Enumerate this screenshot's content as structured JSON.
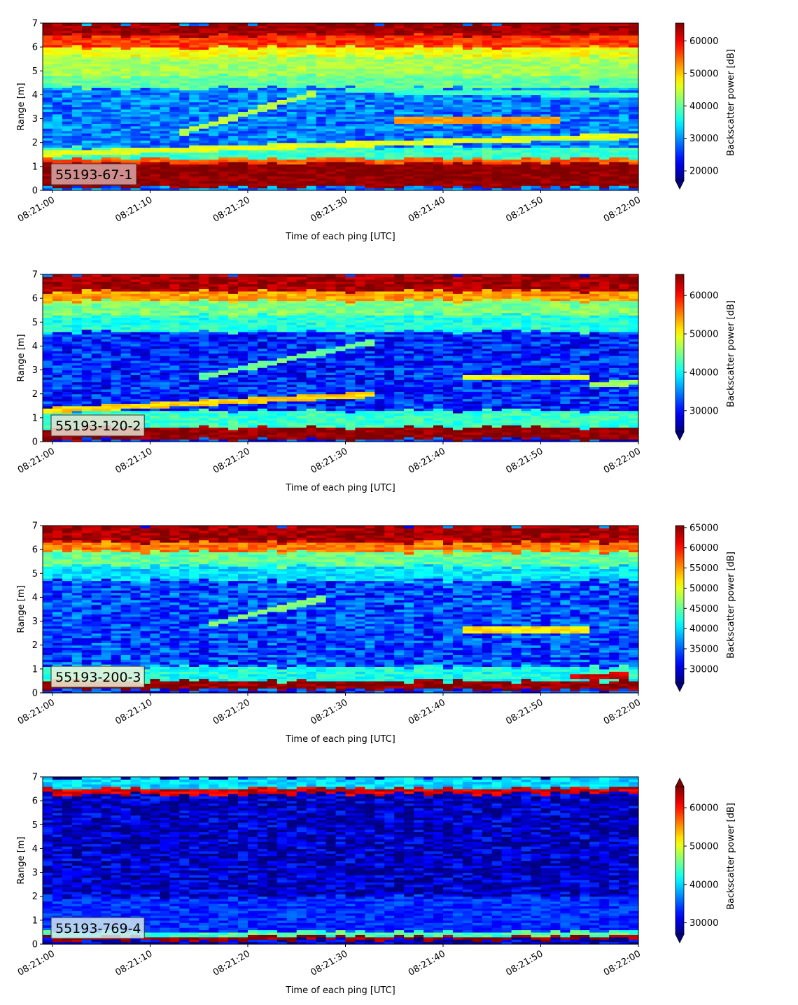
{
  "chart_data": [
    {
      "type": "heatmap",
      "label": "55193-67-1",
      "label_box_color": "#d9a6a6",
      "xlabel": "Time of each ping [UTC]",
      "ylabel": "Range [m]",
      "x_ticks": [
        "08:21:00",
        "08:21:10",
        "08:21:20",
        "08:21:30",
        "08:21:40",
        "08:21:50",
        "08:22:00"
      ],
      "x_range": [
        "08:20:59",
        "08:22:00"
      ],
      "y_ticks": [
        0,
        1,
        2,
        3,
        4,
        5,
        6,
        7
      ],
      "ylim": [
        0,
        7
      ],
      "colorbar_label": "Backscatter power [dB]",
      "colorbar_ticks": [
        20000,
        30000,
        40000,
        50000,
        60000
      ],
      "colorbar_range": [
        17000,
        65500
      ],
      "colorbar_extend": "min",
      "colormap": "jet",
      "features": {
        "background": 29000,
        "bands": [
          {
            "range_m": [
              0.15,
              1.15
            ],
            "value": 65000
          },
          {
            "range_m": [
              1.15,
              1.35
            ],
            "value": 55000
          },
          {
            "range_m": [
              1.35,
              1.8
            ],
            "value": 38000
          },
          {
            "range_m": [
              4.3,
              4.8
            ],
            "value": 40000
          },
          {
            "range_m": [
              4.8,
              5.6
            ],
            "value": 43000
          },
          {
            "range_m": [
              5.6,
              6.0
            ],
            "value": 47000
          },
          {
            "range_m": [
              6.0,
              6.5
            ],
            "value": 57000
          },
          {
            "range_m": [
              6.5,
              7.0
            ],
            "value": 64000
          }
        ],
        "tracks": [
          {
            "start": [
              "08:20:59",
              1.55
            ],
            "end": [
              "08:22:00",
              2.3
            ],
            "value": 46000
          },
          {
            "start": [
              "08:21:13",
              2.4
            ],
            "end": [
              "08:21:27",
              4.1
            ],
            "value": 44000
          },
          {
            "start": [
              "08:21:35",
              2.95
            ],
            "end": [
              "08:21:52",
              2.95
            ],
            "value": 52000
          },
          {
            "start": [
              "08:21:30",
              4.2
            ],
            "end": [
              "08:22:00",
              4.0
            ],
            "value": 38000
          }
        ]
      }
    },
    {
      "type": "heatmap",
      "label": "55193-120-2",
      "label_box_color": "#eadfd0",
      "xlabel": "Time of each ping [UTC]",
      "ylabel": "Range [m]",
      "x_ticks": [
        "08:21:00",
        "08:21:10",
        "08:21:20",
        "08:21:30",
        "08:21:40",
        "08:21:50",
        "08:22:00"
      ],
      "x_range": [
        "08:20:59",
        "08:22:00"
      ],
      "y_ticks": [
        0,
        1,
        2,
        3,
        4,
        5,
        6,
        7
      ],
      "ylim": [
        0,
        7
      ],
      "colorbar_label": "Backscatter power [dB]",
      "colorbar_ticks": [
        30000,
        40000,
        50000,
        60000
      ],
      "colorbar_range": [
        24500,
        65500
      ],
      "colorbar_extend": "min",
      "colormap": "jet",
      "features": {
        "background": 31000,
        "bands": [
          {
            "range_m": [
              0.1,
              0.6
            ],
            "value": 65000
          },
          {
            "range_m": [
              0.6,
              1.3
            ],
            "value": 42000
          },
          {
            "range_m": [
              4.6,
              5.3
            ],
            "value": 41000
          },
          {
            "range_m": [
              5.3,
              5.9
            ],
            "value": 45000
          },
          {
            "range_m": [
              5.9,
              6.3
            ],
            "value": 54000
          },
          {
            "range_m": [
              6.3,
              7.0
            ],
            "value": 64000
          }
        ],
        "tracks": [
          {
            "start": [
              "08:20:59",
              1.3
            ],
            "end": [
              "08:21:33",
              2.0
            ],
            "value": 52000
          },
          {
            "start": [
              "08:21:15",
              2.7
            ],
            "end": [
              "08:21:33",
              4.2
            ],
            "value": 44000
          },
          {
            "start": [
              "08:21:42",
              2.7
            ],
            "end": [
              "08:21:55",
              2.7
            ],
            "value": 50000
          },
          {
            "start": [
              "08:21:55",
              2.4
            ],
            "end": [
              "08:22:00",
              2.5
            ],
            "value": 46000
          }
        ]
      }
    },
    {
      "type": "heatmap",
      "label": "55193-200-3",
      "label_box_color": "#f2f2d8",
      "xlabel": "Time of each ping [UTC]",
      "ylabel": "Range [m]",
      "x_ticks": [
        "08:21:00",
        "08:21:10",
        "08:21:20",
        "08:21:30",
        "08:21:40",
        "08:21:50",
        "08:22:00"
      ],
      "x_range": [
        "08:20:59",
        "08:22:00"
      ],
      "y_ticks": [
        0,
        1,
        2,
        3,
        4,
        5,
        6,
        7
      ],
      "ylim": [
        0,
        7
      ],
      "colorbar_label": "Backscatter power [dB]",
      "colorbar_ticks": [
        30000,
        35000,
        40000,
        45000,
        50000,
        55000,
        60000,
        65000
      ],
      "colorbar_range": [
        26500,
        65500
      ],
      "colorbar_extend": "min",
      "colormap": "jet",
      "features": {
        "background": 34000,
        "bands": [
          {
            "range_m": [
              0.15,
              0.5
            ],
            "value": 65000
          },
          {
            "range_m": [
              0.5,
              1.1
            ],
            "value": 42000
          },
          {
            "range_m": [
              4.7,
              5.3
            ],
            "value": 40000
          },
          {
            "range_m": [
              5.3,
              5.9
            ],
            "value": 45000
          },
          {
            "range_m": [
              5.9,
              6.3
            ],
            "value": 56000
          },
          {
            "range_m": [
              6.3,
              7.0
            ],
            "value": 64000
          }
        ],
        "tracks": [
          {
            "start": [
              "08:21:16",
              2.85
            ],
            "end": [
              "08:21:28",
              4.0
            ],
            "value": 46000
          },
          {
            "start": [
              "08:21:42",
              2.65
            ],
            "end": [
              "08:21:55",
              2.65
            ],
            "value": 52000
          },
          {
            "start": [
              "08:21:53",
              0.7
            ],
            "end": [
              "08:21:59",
              0.75
            ],
            "value": 62000
          }
        ]
      }
    },
    {
      "type": "heatmap",
      "label": "55193-769-4",
      "label_box_color": "#cfe8f0",
      "xlabel": "Time of each ping [UTC]",
      "ylabel": "Range [m]",
      "x_ticks": [
        "08:21:00",
        "08:21:10",
        "08:21:20",
        "08:21:30",
        "08:21:40",
        "08:21:50",
        "08:22:00"
      ],
      "x_range": [
        "08:20:59",
        "08:22:00"
      ],
      "y_ticks": [
        0,
        1,
        2,
        3,
        4,
        5,
        6,
        7
      ],
      "ylim": [
        0,
        7
      ],
      "colorbar_label": "Backscatter power [dB]",
      "colorbar_ticks": [
        30000,
        40000,
        50000,
        60000
      ],
      "colorbar_range": [
        27000,
        65500
      ],
      "colorbar_extend": "both",
      "colormap": "jet",
      "features": {
        "background": 29500,
        "bands": [
          {
            "range_m": [
              0.2,
              0.35
            ],
            "value": 65000
          },
          {
            "range_m": [
              0.35,
              0.55
            ],
            "value": 44000
          },
          {
            "range_m": [
              0.55,
              2.0
            ],
            "value": 33500
          },
          {
            "range_m": [
              6.3,
              6.55
            ],
            "value": 62000
          },
          {
            "range_m": [
              6.55,
              7.0
            ],
            "value": 40000
          }
        ],
        "tracks": []
      }
    }
  ]
}
